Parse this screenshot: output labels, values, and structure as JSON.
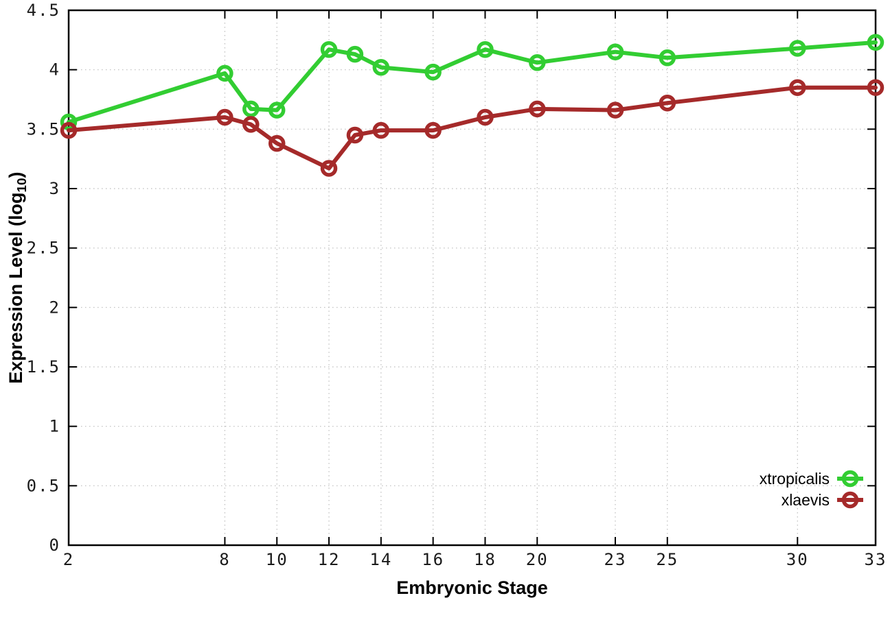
{
  "chart_data": {
    "type": "line",
    "title": "",
    "xlabel": "Embryonic Stage",
    "ylabel": "Expression Level (log10)",
    "ylabel_prefix": "Expression Level (log",
    "ylabel_sub": "10",
    "ylabel_suffix": ")",
    "xlim": [
      2,
      33
    ],
    "ylim": [
      0,
      4.5
    ],
    "x": [
      2,
      8,
      9,
      10,
      12,
      13,
      14,
      16,
      18,
      20,
      23,
      25,
      30,
      33
    ],
    "xticks": [
      2,
      8,
      10,
      12,
      14,
      16,
      18,
      20,
      23,
      25,
      30,
      33
    ],
    "xtick_labels": [
      "2",
      "8",
      "10",
      "12",
      "14",
      "16",
      "18",
      "20",
      "23",
      "25",
      "30",
      "33"
    ],
    "yticks": [
      0,
      0.5,
      1,
      1.5,
      2,
      2.5,
      3,
      3.5,
      4,
      4.5
    ],
    "ytick_labels": [
      "0",
      "0.5",
      "1",
      "1.5",
      "2",
      "2.5",
      "3",
      "3.5",
      "4",
      "4.5"
    ],
    "grid": true,
    "legend_position": "bottom-right",
    "series": [
      {
        "name": "xtropicalis",
        "color": "#32cd32",
        "values": [
          3.56,
          3.97,
          3.67,
          3.66,
          4.17,
          4.13,
          4.02,
          3.98,
          4.17,
          4.06,
          4.15,
          4.1,
          4.18,
          4.23
        ]
      },
      {
        "name": "xlaevis",
        "color": "#a52a2a",
        "values": [
          3.49,
          3.6,
          3.54,
          3.38,
          3.17,
          3.45,
          3.49,
          3.49,
          3.6,
          3.67,
          3.66,
          3.72,
          3.85,
          3.85
        ]
      }
    ],
    "axis_color": "#000000",
    "grid_color": "#bcbcbc",
    "tick_label_color": "#1a1a1a"
  }
}
